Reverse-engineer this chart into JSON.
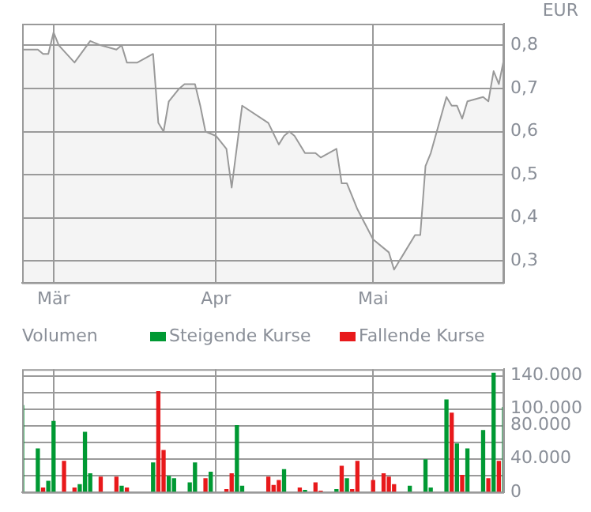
{
  "chart_data": [
    {
      "type": "area",
      "ylabel": "EUR",
      "color": "#999999",
      "grid": true,
      "categories": [
        null,
        null,
        null,
        null,
        null,
        null,
        "Mär",
        null,
        null,
        null,
        null,
        null,
        null,
        null,
        null,
        null,
        null,
        null,
        null,
        null,
        null,
        null,
        null,
        null,
        null,
        null,
        null,
        null,
        null,
        null,
        null,
        null,
        null,
        null,
        null,
        null,
        null,
        "Apr",
        null,
        null,
        null,
        null,
        null,
        null,
        null,
        null,
        null,
        null,
        null,
        null,
        null,
        null,
        null,
        null,
        null,
        null,
        null,
        null,
        null,
        null,
        null,
        null,
        null,
        null,
        null,
        null,
        null,
        "Mai",
        null,
        null,
        null,
        null,
        null,
        null,
        null,
        null,
        null,
        null,
        null,
        null,
        null,
        null,
        null,
        null,
        null,
        null,
        null,
        null,
        null,
        null,
        null,
        null,
        null
      ],
      "values": [
        0.79,
        null,
        null,
        0.79,
        0.78,
        0.78,
        0.83,
        0.8,
        null,
        null,
        0.76,
        null,
        null,
        0.81,
        null,
        0.8,
        null,
        null,
        0.79,
        0.8,
        0.76,
        null,
        0.76,
        null,
        null,
        0.78,
        0.62,
        0.6,
        0.67,
        null,
        0.7,
        0.71,
        null,
        0.71,
        0.66,
        0.6,
        null,
        0.59,
        null,
        0.56,
        0.47,
        null,
        0.66,
        null,
        null,
        null,
        null,
        0.62,
        null,
        0.57,
        0.59,
        0.6,
        0.59,
        null,
        0.55,
        null,
        0.55,
        0.54,
        null,
        null,
        0.56,
        0.48,
        0.48,
        null,
        0.42,
        null,
        null,
        0.35,
        null,
        null,
        0.32,
        0.28,
        0.3,
        null,
        null,
        0.36,
        0.36,
        0.52,
        0.55,
        null,
        null,
        0.68,
        0.66,
        0.66,
        0.63,
        0.67,
        null,
        null,
        0.68,
        0.67,
        0.74,
        0.71,
        0.77
      ],
      "ylim": [
        0.25,
        0.85
      ],
      "yticks": [
        {
          "value": 0.3,
          "label": "0,3"
        },
        {
          "value": 0.4,
          "label": "0,4"
        },
        {
          "value": 0.5,
          "label": "0,5"
        },
        {
          "value": 0.6,
          "label": "0,6"
        },
        {
          "value": 0.7,
          "label": "0,7"
        },
        {
          "value": 0.8,
          "label": "0,8"
        }
      ]
    },
    {
      "type": "bar",
      "title": "Volumen",
      "grid": true,
      "legend": "top",
      "tick_labels": "y",
      "categories": [
        null,
        null,
        null,
        null,
        null,
        null,
        null,
        null,
        null,
        null,
        null,
        null,
        null,
        null,
        null,
        null,
        null,
        null,
        null,
        null,
        null,
        null,
        null,
        null,
        null,
        null,
        null,
        null,
        null,
        null,
        null,
        null,
        null,
        null,
        null,
        null,
        null,
        null,
        null,
        null,
        null,
        null,
        null,
        null,
        null,
        null,
        null,
        null,
        null,
        null,
        null,
        null,
        null,
        null,
        null,
        null,
        null,
        null,
        null,
        null,
        null,
        null,
        null,
        null,
        null,
        null,
        null,
        null,
        null,
        null,
        null,
        null,
        null,
        null,
        null,
        null,
        null,
        null,
        null,
        null,
        null,
        null,
        null,
        null,
        null,
        null,
        null,
        null,
        null,
        null,
        null,
        null,
        null
      ],
      "series": [
        {
          "name": "Steigende Kurse",
          "color": "#009933",
          "values": [
            104000,
            null,
            null,
            52000,
            null,
            13000,
            85000,
            null,
            null,
            null,
            null,
            9000,
            72000,
            22000,
            null,
            null,
            null,
            null,
            null,
            7000,
            null,
            null,
            null,
            null,
            null,
            35000,
            null,
            null,
            19000,
            16000,
            null,
            null,
            11000,
            35000,
            null,
            null,
            24000,
            null,
            null,
            null,
            null,
            80000,
            7000,
            null,
            null,
            null,
            null,
            null,
            null,
            null,
            27000,
            null,
            null,
            null,
            2000,
            null,
            null,
            null,
            null,
            null,
            3000,
            null,
            16000,
            null,
            null,
            null,
            null,
            null,
            null,
            null,
            null,
            null,
            null,
            null,
            7000,
            null,
            null,
            39000,
            5000,
            null,
            null,
            111000,
            null,
            58000,
            null,
            52000,
            null,
            null,
            74000,
            null,
            143000,
            null,
            102000
          ]
        },
        {
          "name": "Fallende Kurse",
          "color": "#e8191b",
          "values": [
            null,
            null,
            null,
            null,
            5000,
            null,
            null,
            null,
            37000,
            null,
            5000,
            null,
            null,
            null,
            null,
            18000,
            null,
            null,
            18000,
            null,
            5000,
            null,
            null,
            null,
            null,
            null,
            121000,
            50000,
            null,
            null,
            null,
            null,
            null,
            null,
            null,
            16000,
            null,
            null,
            null,
            3000,
            22000,
            null,
            null,
            null,
            null,
            null,
            null,
            18000,
            8000,
            14000,
            null,
            null,
            null,
            5000,
            null,
            null,
            11000,
            1000,
            null,
            null,
            null,
            31000,
            null,
            3000,
            37000,
            null,
            null,
            14000,
            null,
            22000,
            18000,
            9000,
            null,
            null,
            null,
            null,
            null,
            null,
            null,
            null,
            null,
            null,
            95000,
            null,
            20000,
            null,
            null,
            null,
            null,
            16000,
            null,
            37000,
            null
          ]
        }
      ],
      "ylim": [
        0,
        148000
      ],
      "yticks": [
        {
          "value": 0,
          "label": "0"
        },
        {
          "value": 20000,
          "label": null
        },
        {
          "value": 40000,
          "label": "40.000"
        },
        {
          "value": 60000,
          "label": null
        },
        {
          "value": 80000,
          "label": "80.000"
        },
        {
          "value": 100000,
          "label": "100.000"
        },
        {
          "value": 120000,
          "label": null
        },
        {
          "value": 140000,
          "label": "140.000"
        }
      ]
    }
  ]
}
